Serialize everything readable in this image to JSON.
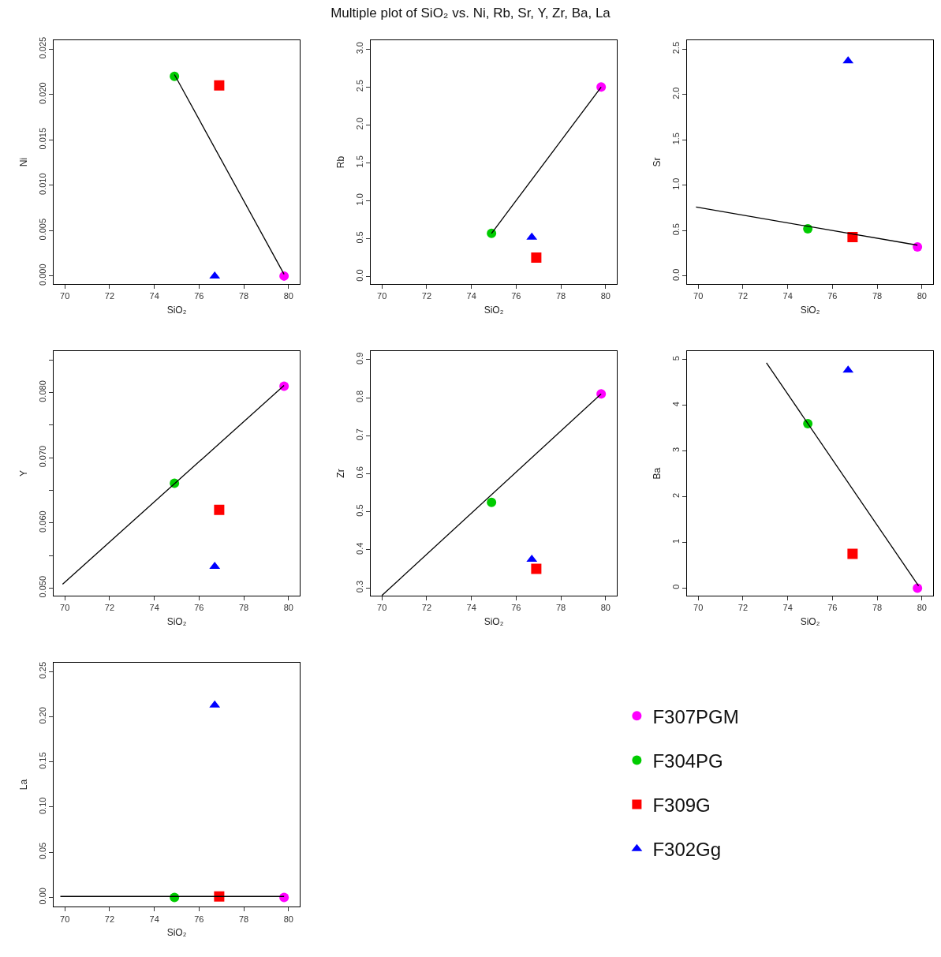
{
  "chart_data": [
    {
      "type": "other",
      "title": "Multiple plot of SiO₂ vs. Ni, Rb, Sr, Y, Zr, Ba, La"
    },
    {
      "type": "scatter",
      "xlabel": "SiO₂",
      "ylabel": "Ni",
      "xlim": [
        69.5,
        80.5
      ],
      "xticks": [
        70,
        72,
        74,
        76,
        78,
        80
      ],
      "ylim": [
        -0.0009,
        0.026
      ],
      "yticks": [
        {
          "value": 0,
          "label": "0.000"
        },
        {
          "value": 0.005,
          "label": "0.005"
        },
        {
          "value": 0.01,
          "label": "0.010"
        },
        {
          "value": 0.015,
          "label": "0.015"
        },
        {
          "value": 0.02,
          "label": "0.020"
        },
        {
          "value": 0.025,
          "label": "0.025"
        }
      ],
      "series": [
        {
          "color": "#ff00ff",
          "marker": "circle",
          "x": [
            79.8
          ],
          "values": [
            0.0
          ]
        },
        {
          "color": "#00cc00",
          "marker": "circle",
          "x": [
            74.9
          ],
          "values": [
            0.022
          ]
        },
        {
          "color": "#ff0000",
          "marker": "square",
          "x": [
            76.9
          ],
          "values": [
            0.021
          ]
        },
        {
          "color": "#0000ff",
          "marker": "triangle",
          "x": [
            76.7
          ],
          "values": [
            0.0
          ]
        },
        {
          "type": "line",
          "color": "#000000",
          "marker": "none",
          "x": [
            74.9,
            79.8
          ],
          "values": [
            0.0222,
            0.0002
          ]
        }
      ]
    },
    {
      "type": "scatter",
      "xlabel": "SiO₂",
      "ylabel": "Rb",
      "xlim": [
        69.5,
        80.5
      ],
      "xticks": [
        70,
        72,
        74,
        76,
        78,
        80
      ],
      "ylim": [
        -0.1,
        3.12
      ],
      "yticks": [
        {
          "value": 0,
          "label": "0.0"
        },
        {
          "value": 0.5,
          "label": "0.5"
        },
        {
          "value": 1,
          "label": "1.0"
        },
        {
          "value": 1.5,
          "label": "1.5"
        },
        {
          "value": 2,
          "label": "2.0"
        },
        {
          "value": 2.5,
          "label": "2.5"
        },
        {
          "value": 3,
          "label": "3.0"
        }
      ],
      "series": [
        {
          "color": "#ff00ff",
          "marker": "circle",
          "x": [
            79.8
          ],
          "values": [
            2.5
          ]
        },
        {
          "color": "#00cc00",
          "marker": "circle",
          "x": [
            74.9
          ],
          "values": [
            0.57
          ]
        },
        {
          "color": "#ff0000",
          "marker": "square",
          "x": [
            76.9
          ],
          "values": [
            0.25
          ]
        },
        {
          "color": "#0000ff",
          "marker": "triangle",
          "x": [
            76.7
          ],
          "values": [
            0.52
          ]
        },
        {
          "type": "line",
          "color": "#000000",
          "marker": "none",
          "x": [
            74.9,
            79.8
          ],
          "values": [
            0.57,
            2.5
          ]
        }
      ]
    },
    {
      "type": "scatter",
      "xlabel": "SiO₂",
      "ylabel": "Sr",
      "xlim": [
        69.5,
        80.5
      ],
      "xticks": [
        70,
        72,
        74,
        76,
        78,
        80
      ],
      "ylim": [
        -0.09,
        2.6
      ],
      "yticks": [
        {
          "value": 0,
          "label": "0.0"
        },
        {
          "value": 0.5,
          "label": "0.5"
        },
        {
          "value": 1,
          "label": "1.0"
        },
        {
          "value": 1.5,
          "label": "1.5"
        },
        {
          "value": 2,
          "label": "2.0"
        },
        {
          "value": 2.5,
          "label": "2.5"
        }
      ],
      "series": [
        {
          "color": "#ff00ff",
          "marker": "circle",
          "x": [
            79.8
          ],
          "values": [
            0.32
          ]
        },
        {
          "color": "#00cc00",
          "marker": "circle",
          "x": [
            74.9
          ],
          "values": [
            0.52
          ]
        },
        {
          "color": "#ff0000",
          "marker": "square",
          "x": [
            76.9
          ],
          "values": [
            0.43
          ]
        },
        {
          "color": "#0000ff",
          "marker": "triangle",
          "x": [
            76.7
          ],
          "values": [
            2.37
          ]
        },
        {
          "type": "line",
          "color": "#000000",
          "marker": "none",
          "x": [
            69.9,
            79.8
          ],
          "values": [
            0.76,
            0.34
          ]
        }
      ]
    },
    {
      "type": "scatter",
      "xlabel": "SiO₂",
      "ylabel": "Y",
      "xlim": [
        69.5,
        80.5
      ],
      "xticks": [
        70,
        72,
        74,
        76,
        78,
        80
      ],
      "ylim": [
        0.0488,
        0.0864
      ],
      "yticks": [
        {
          "value": 0.05,
          "label": "0.050"
        },
        {
          "value": 0.055,
          "label": null
        },
        {
          "value": 0.06,
          "label": "0.060"
        },
        {
          "value": 0.065,
          "label": null
        },
        {
          "value": 0.07,
          "label": "0.070"
        },
        {
          "value": 0.075,
          "label": null
        },
        {
          "value": 0.08,
          "label": "0.080"
        },
        {
          "value": 0.085,
          "label": null
        }
      ],
      "series": [
        {
          "color": "#ff00ff",
          "marker": "circle",
          "x": [
            79.8
          ],
          "values": [
            0.081
          ]
        },
        {
          "color": "#00cc00",
          "marker": "circle",
          "x": [
            74.9
          ],
          "values": [
            0.0661
          ]
        },
        {
          "color": "#ff0000",
          "marker": "square",
          "x": [
            76.9
          ],
          "values": [
            0.062
          ]
        },
        {
          "color": "#0000ff",
          "marker": "triangle",
          "x": [
            76.7
          ],
          "values": [
            0.0533
          ]
        },
        {
          "type": "line",
          "color": "#000000",
          "marker": "none",
          "x": [
            69.9,
            79.8
          ],
          "values": [
            0.0506,
            0.0811
          ]
        }
      ]
    },
    {
      "type": "scatter",
      "xlabel": "SiO₂",
      "ylabel": "Zr",
      "xlim": [
        69.5,
        80.5
      ],
      "xticks": [
        70,
        72,
        74,
        76,
        78,
        80
      ],
      "ylim": [
        0.279,
        0.923
      ],
      "yticks": [
        0.3,
        0.4,
        0.5,
        0.6,
        0.7,
        0.8,
        0.9
      ],
      "series": [
        {
          "color": "#ff00ff",
          "marker": "circle",
          "x": [
            79.8
          ],
          "values": [
            0.81
          ]
        },
        {
          "color": "#00cc00",
          "marker": "circle",
          "x": [
            74.9
          ],
          "values": [
            0.525
          ]
        },
        {
          "color": "#ff0000",
          "marker": "square",
          "x": [
            76.9
          ],
          "values": [
            0.35
          ]
        },
        {
          "color": "#0000ff",
          "marker": "triangle",
          "x": [
            76.7
          ],
          "values": [
            0.375
          ]
        },
        {
          "type": "line",
          "color": "#000000",
          "marker": "none",
          "x": [
            70.0,
            79.8
          ],
          "values": [
            0.28,
            0.81
          ]
        }
      ]
    },
    {
      "type": "scatter",
      "xlabel": "SiO₂",
      "ylabel": "Ba",
      "xlim": [
        69.5,
        80.5
      ],
      "xticks": [
        70,
        72,
        74,
        76,
        78,
        80
      ],
      "ylim": [
        -0.17,
        5.19
      ],
      "yticks": [
        0,
        1,
        2,
        3,
        4,
        5
      ],
      "series": [
        {
          "color": "#ff00ff",
          "marker": "circle",
          "x": [
            79.8
          ],
          "values": [
            0.0
          ]
        },
        {
          "color": "#00cc00",
          "marker": "circle",
          "x": [
            74.9
          ],
          "values": [
            3.6
          ]
        },
        {
          "color": "#ff0000",
          "marker": "square",
          "x": [
            76.9
          ],
          "values": [
            0.75
          ]
        },
        {
          "color": "#0000ff",
          "marker": "triangle",
          "x": [
            76.7
          ],
          "values": [
            4.77
          ]
        },
        {
          "type": "line",
          "color": "#000000",
          "marker": "none",
          "x": [
            73.05,
            79.85
          ],
          "values": [
            4.93,
            0.05
          ]
        }
      ]
    },
    {
      "type": "scatter",
      "xlabel": "SiO₂",
      "ylabel": "La",
      "legend": "right",
      "xlim": [
        69.5,
        80.5
      ],
      "xticks": [
        70,
        72,
        74,
        76,
        78,
        80
      ],
      "ylim": [
        -0.0104,
        0.26
      ],
      "yticks": [
        {
          "value": 0,
          "label": "0.00"
        },
        {
          "value": 0.05,
          "label": "0.05"
        },
        {
          "value": 0.1,
          "label": "0.10"
        },
        {
          "value": 0.15,
          "label": "0.15"
        },
        {
          "value": 0.2,
          "label": "0.20"
        },
        {
          "value": 0.25,
          "label": "0.25"
        }
      ],
      "series": [
        {
          "name": "F307PGM",
          "color": "#ff00ff",
          "marker": "circle",
          "x": [
            79.8
          ],
          "values": [
            0.0
          ]
        },
        {
          "name": "F304PG",
          "color": "#00cc00",
          "marker": "circle",
          "x": [
            74.9
          ],
          "values": [
            0.0
          ]
        },
        {
          "name": "F309G",
          "color": "#ff0000",
          "marker": "square",
          "x": [
            76.9
          ],
          "values": [
            0.001
          ]
        },
        {
          "name": "F302Gg",
          "color": "#0000ff",
          "marker": "triangle",
          "x": [
            76.7
          ],
          "values": [
            0.213
          ]
        },
        {
          "type": "line",
          "color": "#000000",
          "marker": "none",
          "x": [
            69.8,
            79.8
          ],
          "values": [
            0.001,
            0.001
          ]
        }
      ]
    }
  ]
}
